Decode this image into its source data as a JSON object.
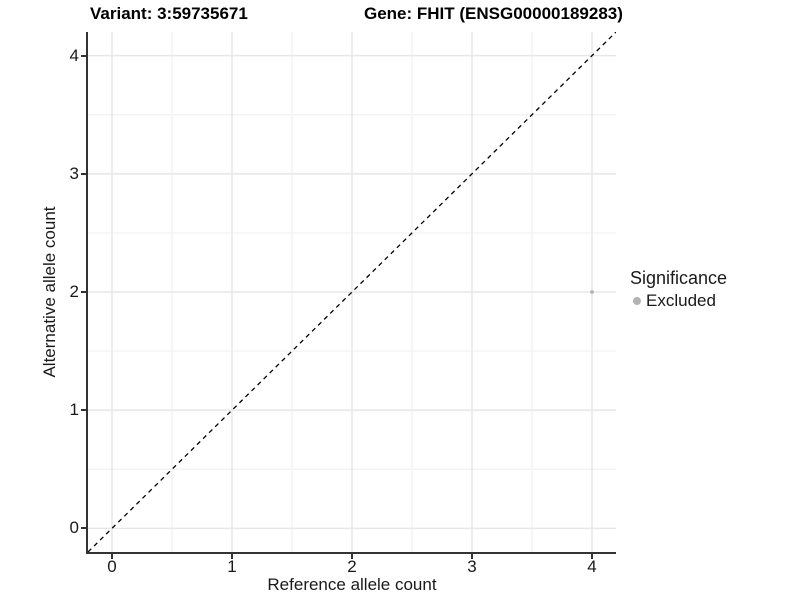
{
  "titles": {
    "variant": "Variant: 3:59735671",
    "gene": "Gene: FHIT (ENSG00000189283)"
  },
  "legend": {
    "title": "Significance",
    "items": [
      {
        "label": "Excluded",
        "color": "#b3b3b3"
      }
    ]
  },
  "colors": {
    "axis_line": "#333333",
    "tick_label": "#1a1a1a",
    "major_grid": "#e7e7e7",
    "minor_grid": "#f3f3f3",
    "reference_line": "#000000",
    "point": "#b3b3b3",
    "background": "#ffffff"
  },
  "chart_data": {
    "type": "scatter",
    "title": "Variant: 3:59735671   Gene: FHIT (ENSG00000189283)",
    "xlabel": "Reference allele count",
    "ylabel": "Alternative allele count",
    "xlim": [
      -0.2,
      4.2
    ],
    "ylim": [
      -0.2,
      4.2
    ],
    "x_ticks": [
      0,
      1,
      2,
      3,
      4
    ],
    "y_ticks": [
      0,
      1,
      2,
      3,
      4
    ],
    "grid": true,
    "legend_position": "right",
    "legend_title": "Significance",
    "series": [
      {
        "name": "Excluded",
        "color": "#b3b3b3",
        "points": [
          {
            "x": 4,
            "y": 2
          }
        ]
      }
    ],
    "reference_line": {
      "kind": "identity",
      "style": "dashed",
      "color": "#000000"
    }
  }
}
